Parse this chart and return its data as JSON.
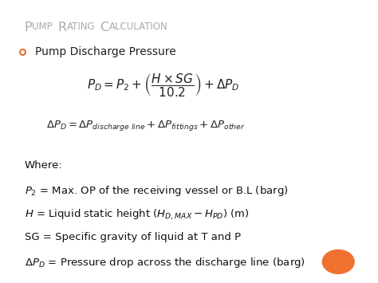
{
  "title": "Pump Rating Calculation",
  "title_color": "#aaaaaa",
  "bg_color": "#ffffff",
  "bullet_color": "#e07030",
  "bullet_label": "Pump Discharge Pressure",
  "formula1": "$P_D = P_2 + \\left(\\dfrac{H \\times SG}{10.2}\\right) + \\Delta P_D$",
  "formula2": "$\\Delta P_D = \\Delta P_{discharge\\ line} + \\Delta P_{fittings} + \\Delta P_{other}$",
  "where_line0": "Where:",
  "where_line1": "$P_2$ = Max. OP of the receiving vessel or B.L (barg)",
  "where_line2": "$H$ = Liquid static height ($H_{D,MAX} - H_{PD}$) (m)",
  "where_line3": "SG = Specific gravity of liquid at T and P",
  "where_line4": "$\\Delta P_D$ = Pressure drop across the discharge line (barg)",
  "orange_circle_color": "#f07030",
  "border_light": "#fde8d8",
  "border_dark": "#f4a070",
  "figsize": [
    4.74,
    3.55
  ],
  "dpi": 100
}
